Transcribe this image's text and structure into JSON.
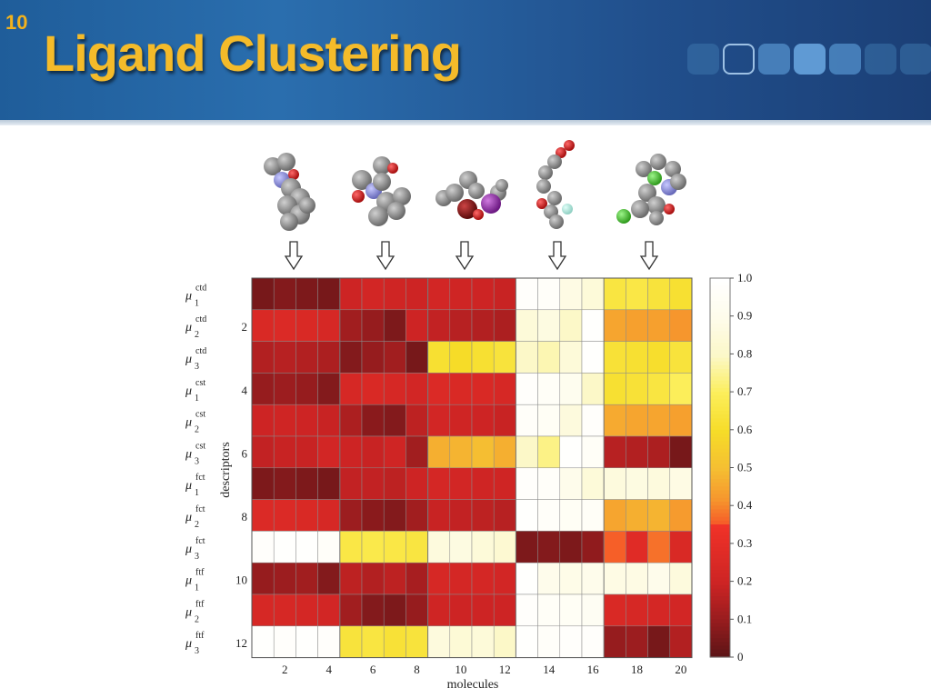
{
  "slide": {
    "number": "10",
    "title": "Ligand Clustering"
  },
  "colors": {
    "title": "#f4bb2a",
    "header": "#2a6eae"
  },
  "chart_data": {
    "type": "heatmap",
    "xlabel": "molecules",
    "ylabel": "descriptors",
    "x_ticks": [
      "2",
      "4",
      "6",
      "8",
      "10",
      "12",
      "14",
      "16",
      "18",
      "20"
    ],
    "y_ticks": [
      "2",
      "4",
      "6",
      "8",
      "10",
      "12"
    ],
    "colorbar_ticks": [
      "1.0",
      "0.9",
      "0.8",
      "0.7",
      "0.6",
      "0.5",
      "0.4",
      "0.3",
      "0.2",
      "0.1",
      "0"
    ],
    "colorbar_range": [
      0,
      1
    ],
    "row_labels": [
      {
        "sym": "μ",
        "sup": "ctd",
        "sub": "1"
      },
      {
        "sym": "μ",
        "sup": "ctd",
        "sub": "2"
      },
      {
        "sym": "μ",
        "sup": "ctd",
        "sub": "3"
      },
      {
        "sym": "μ",
        "sup": "cst",
        "sub": "1"
      },
      {
        "sym": "μ",
        "sup": "cst",
        "sub": "2"
      },
      {
        "sym": "μ",
        "sup": "cst",
        "sub": "3"
      },
      {
        "sym": "μ",
        "sup": "fct",
        "sub": "1"
      },
      {
        "sym": "μ",
        "sup": "fct",
        "sub": "2"
      },
      {
        "sym": "μ",
        "sup": "fct",
        "sub": "3"
      },
      {
        "sym": "μ",
        "sup": "ftf",
        "sub": "1"
      },
      {
        "sym": "μ",
        "sup": "ftf",
        "sub": "2"
      },
      {
        "sym": "μ",
        "sup": "ftf",
        "sub": "3"
      }
    ],
    "values": [
      [
        0.05,
        0.07,
        0.06,
        0.05,
        0.2,
        0.22,
        0.21,
        0.2,
        0.22,
        0.21,
        0.2,
        0.19,
        0.98,
        0.97,
        0.88,
        0.85,
        0.65,
        0.66,
        0.64,
        0.62
      ],
      [
        0.25,
        0.26,
        0.25,
        0.24,
        0.12,
        0.1,
        0.06,
        0.2,
        0.18,
        0.16,
        0.15,
        0.14,
        0.85,
        0.87,
        0.8,
        0.99,
        0.45,
        0.44,
        0.44,
        0.42
      ],
      [
        0.15,
        0.16,
        0.15,
        0.14,
        0.07,
        0.1,
        0.12,
        0.05,
        0.62,
        0.6,
        0.62,
        0.64,
        0.8,
        0.78,
        0.85,
        0.99,
        0.63,
        0.62,
        0.61,
        0.64
      ],
      [
        0.1,
        0.11,
        0.1,
        0.07,
        0.24,
        0.25,
        0.24,
        0.22,
        0.26,
        0.25,
        0.25,
        0.24,
        0.98,
        0.96,
        0.92,
        0.8,
        0.62,
        0.63,
        0.65,
        0.7
      ],
      [
        0.2,
        0.21,
        0.2,
        0.19,
        0.14,
        0.08,
        0.07,
        0.17,
        0.22,
        0.21,
        0.2,
        0.19,
        0.97,
        0.95,
        0.86,
        0.98,
        0.46,
        0.45,
        0.45,
        0.44
      ],
      [
        0.18,
        0.19,
        0.19,
        0.22,
        0.2,
        0.19,
        0.21,
        0.12,
        0.47,
        0.48,
        0.5,
        0.47,
        0.8,
        0.74,
        0.99,
        0.96,
        0.16,
        0.15,
        0.14,
        0.05
      ],
      [
        0.06,
        0.07,
        0.06,
        0.05,
        0.18,
        0.18,
        0.17,
        0.2,
        0.23,
        0.22,
        0.21,
        0.21,
        0.98,
        0.97,
        0.9,
        0.85,
        0.86,
        0.87,
        0.86,
        0.88
      ],
      [
        0.26,
        0.26,
        0.25,
        0.24,
        0.11,
        0.08,
        0.07,
        0.12,
        0.19,
        0.18,
        0.17,
        0.16,
        0.99,
        0.97,
        0.95,
        0.96,
        0.45,
        0.47,
        0.48,
        0.43
      ],
      [
        0.98,
        0.99,
        0.99,
        0.97,
        0.66,
        0.67,
        0.66,
        0.65,
        0.86,
        0.87,
        0.85,
        0.83,
        0.06,
        0.07,
        0.06,
        0.09,
        0.36,
        0.28,
        0.38,
        0.25
      ],
      [
        0.1,
        0.11,
        0.12,
        0.07,
        0.17,
        0.15,
        0.17,
        0.13,
        0.24,
        0.23,
        0.23,
        0.22,
        0.99,
        0.9,
        0.89,
        0.9,
        0.88,
        0.88,
        0.9,
        0.86
      ],
      [
        0.24,
        0.24,
        0.23,
        0.22,
        0.12,
        0.07,
        0.06,
        0.1,
        0.21,
        0.2,
        0.2,
        0.2,
        0.98,
        0.96,
        0.95,
        0.94,
        0.25,
        0.24,
        0.23,
        0.22
      ],
      [
        0.99,
        0.98,
        0.99,
        0.98,
        0.64,
        0.65,
        0.63,
        0.64,
        0.86,
        0.84,
        0.85,
        0.8,
        0.99,
        0.97,
        0.98,
        0.98,
        0.1,
        0.11,
        0.05,
        0.15
      ]
    ]
  }
}
